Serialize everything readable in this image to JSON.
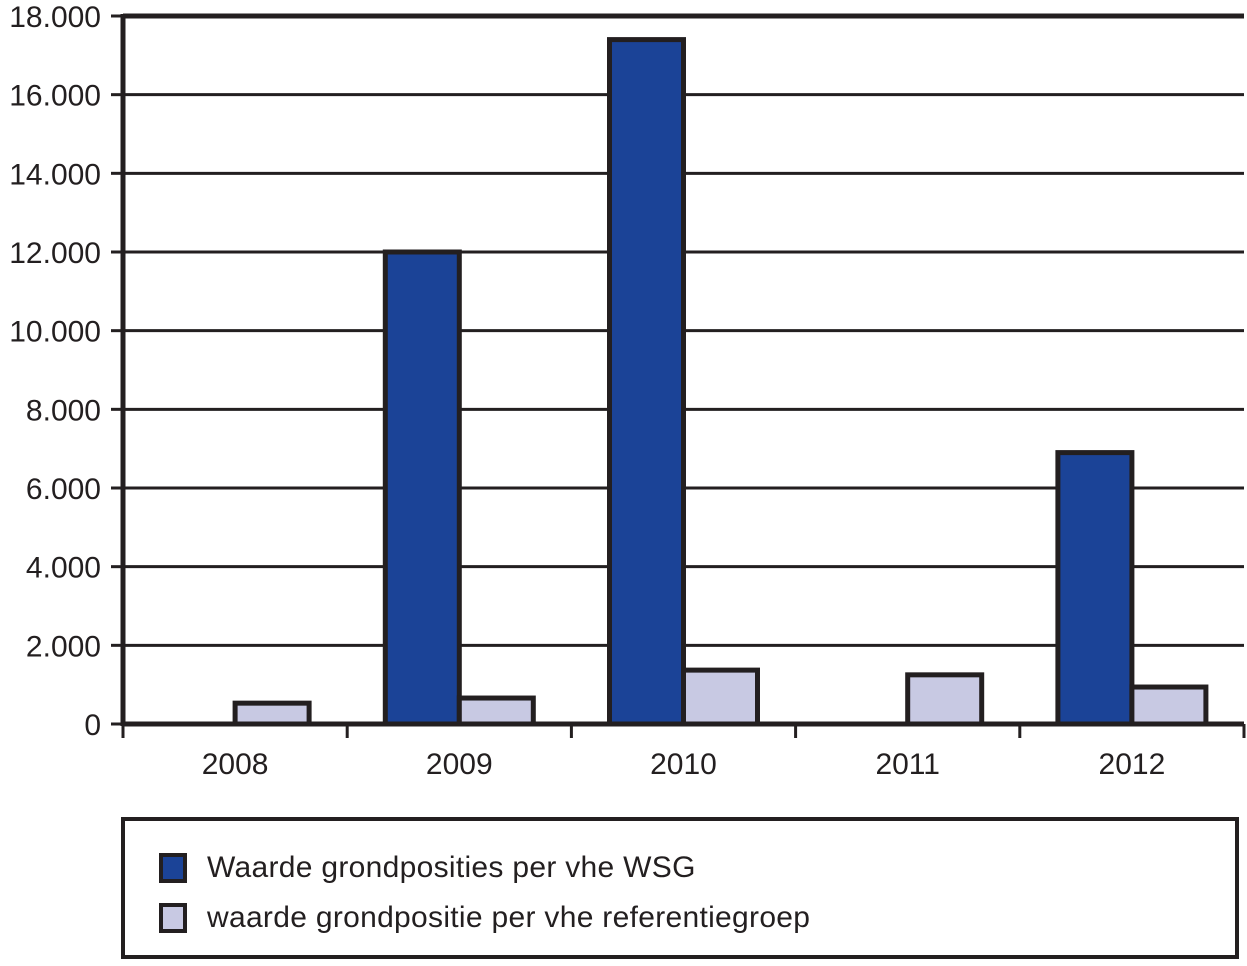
{
  "chart_data": {
    "type": "bar",
    "title": "",
    "xlabel": "",
    "ylabel": "",
    "categories": [
      "2008",
      "2009",
      "2010",
      "2011",
      "2012"
    ],
    "series": [
      {
        "name": "Waarde grondposities per vhe WSG",
        "color": "#1b4397",
        "values": [
          0,
          12000,
          17400,
          0,
          6900
        ]
      },
      {
        "name": "waarde grondpositie per vhe referentiegroep",
        "color": "#c8c9e3",
        "values": [
          530,
          660,
          1370,
          1250,
          940
        ]
      }
    ],
    "ylim": [
      0,
      18000
    ],
    "yticks": [
      0,
      2000,
      4000,
      6000,
      8000,
      10000,
      12000,
      14000,
      16000,
      18000
    ],
    "ytick_labels": [
      "0",
      "2.000",
      "4.000",
      "6.000",
      "8.000",
      "10.000",
      "12.000",
      "14.000",
      "16.000",
      "18.000"
    ],
    "grid": true,
    "legend_position": "bottom"
  },
  "legend": {
    "items": [
      {
        "label": "Waarde grondposities per vhe WSG",
        "color": "#1b4397"
      },
      {
        "label": "waarde grondpositie per vhe referentiegroep",
        "color": "#c8c9e3"
      }
    ]
  }
}
